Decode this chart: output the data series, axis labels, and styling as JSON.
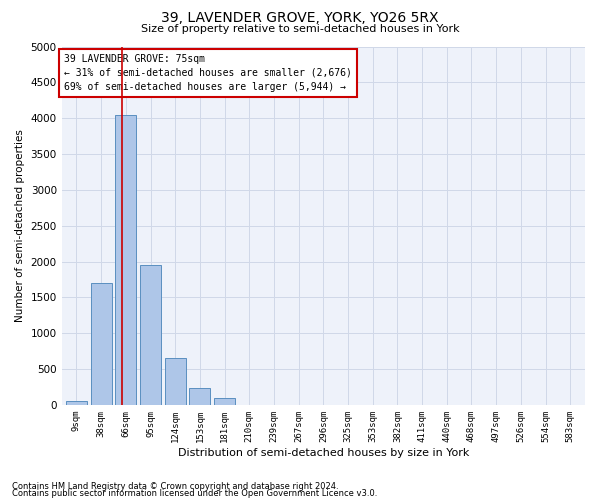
{
  "title": "39, LAVENDER GROVE, YORK, YO26 5RX",
  "subtitle": "Size of property relative to semi-detached houses in York",
  "xlabel": "Distribution of semi-detached houses by size in York",
  "ylabel": "Number of semi-detached properties",
  "footnote1": "Contains HM Land Registry data © Crown copyright and database right 2024.",
  "footnote2": "Contains public sector information licensed under the Open Government Licence v3.0.",
  "annotation_title": "39 LAVENDER GROVE: 75sqm",
  "annotation_line1": "← 31% of semi-detached houses are smaller (2,676)",
  "annotation_line2": "69% of semi-detached houses are larger (5,944) →",
  "property_size": 75,
  "bar_categories": [
    "9sqm",
    "38sqm",
    "66sqm",
    "95sqm",
    "124sqm",
    "153sqm",
    "181sqm",
    "210sqm",
    "239sqm",
    "267sqm",
    "296sqm",
    "325sqm",
    "353sqm",
    "382sqm",
    "411sqm",
    "440sqm",
    "468sqm",
    "497sqm",
    "526sqm",
    "554sqm",
    "583sqm"
  ],
  "bar_values": [
    50,
    1700,
    4050,
    1950,
    650,
    230,
    100,
    0,
    0,
    0,
    0,
    0,
    0,
    0,
    0,
    0,
    0,
    0,
    0,
    0,
    0
  ],
  "bar_color": "#aec6e8",
  "bar_edge_color": "#5a8fc0",
  "ylim": [
    0,
    5000
  ],
  "yticks": [
    0,
    500,
    1000,
    1500,
    2000,
    2500,
    3000,
    3500,
    4000,
    4500,
    5000
  ],
  "annotation_box_color": "#ffffff",
  "annotation_box_edge": "#cc0000",
  "red_line_color": "#cc0000",
  "grid_color": "#d0d8e8",
  "bg_color": "#eef2fa"
}
